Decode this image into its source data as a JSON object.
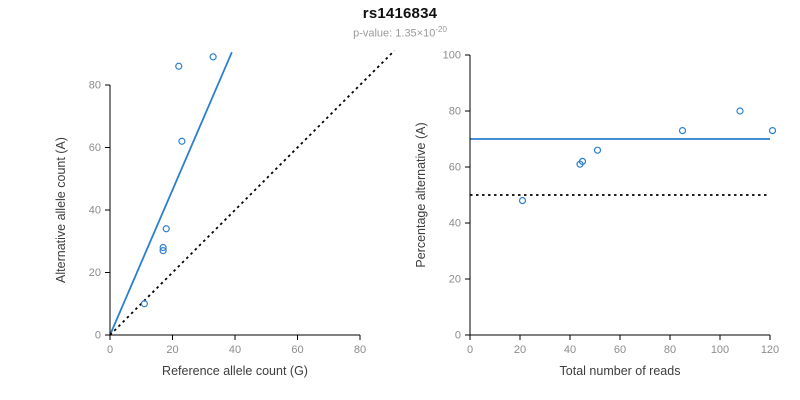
{
  "header": {
    "title": "rs1416834",
    "pvalue_base": "p-value: 1.35×10",
    "pvalue_exponent": "-20"
  },
  "colors": {
    "accent_blue": "#2b7fd0",
    "axis_black": "#000000",
    "tick_label_gray": "#8c8c8c",
    "axis_title_dark": "#3d3d3d",
    "subtitle_gray": "#9a9a9a"
  },
  "chart_data": {
    "title": "rs1416834",
    "subtitle": "p-value: 1.35×10^-20",
    "grid": false,
    "legend": false,
    "plots": [
      {
        "type": "scatter",
        "xlabel": "Reference allele count (G)",
        "ylabel": "Alternative allele count (A)",
        "x_range": [
          0,
          80
        ],
        "y_range": [
          0,
          80
        ],
        "x_ticks": [
          0,
          20,
          40,
          60,
          80
        ],
        "y_ticks": [
          0,
          20,
          40,
          60,
          80
        ],
        "point_color": "#2b7fd0",
        "points": [
          [
            11,
            10
          ],
          [
            17,
            27
          ],
          [
            17,
            28
          ],
          [
            18,
            34
          ],
          [
            23,
            62
          ],
          [
            22,
            86
          ],
          [
            33,
            89
          ]
        ],
        "lines": [
          {
            "name": "regression-line",
            "style": "solid",
            "color": "#2b7fd0",
            "x": [
              0,
              39
            ],
            "y": [
              0,
              90.5
            ]
          },
          {
            "name": "identity-line",
            "style": "dotted",
            "color": "#000000",
            "x": [
              0,
              91
            ],
            "y": [
              0,
              91
            ]
          }
        ]
      },
      {
        "type": "scatter",
        "xlabel": "Total number of reads",
        "ylabel": "Percentage alternative (A)",
        "x_range": [
          0,
          120
        ],
        "y_range": [
          0,
          100
        ],
        "x_ticks": [
          0,
          20,
          40,
          60,
          80,
          100,
          120
        ],
        "y_ticks": [
          0,
          20,
          40,
          60,
          80,
          100
        ],
        "point_color": "#2b7fd0",
        "points": [
          [
            21,
            48
          ],
          [
            44,
            61
          ],
          [
            45,
            62
          ],
          [
            51,
            66
          ],
          [
            85,
            73
          ],
          [
            108,
            80
          ],
          [
            121,
            73
          ]
        ],
        "lines": [
          {
            "name": "mean-percentage-line",
            "style": "solid",
            "color": "#2b7fd0",
            "x": [
              0,
              120
            ],
            "y": [
              70,
              70
            ]
          },
          {
            "name": "expected-50-percent-line",
            "style": "dotted",
            "color": "#000000",
            "x": [
              0,
              120
            ],
            "y": [
              50,
              50
            ]
          }
        ]
      }
    ]
  }
}
